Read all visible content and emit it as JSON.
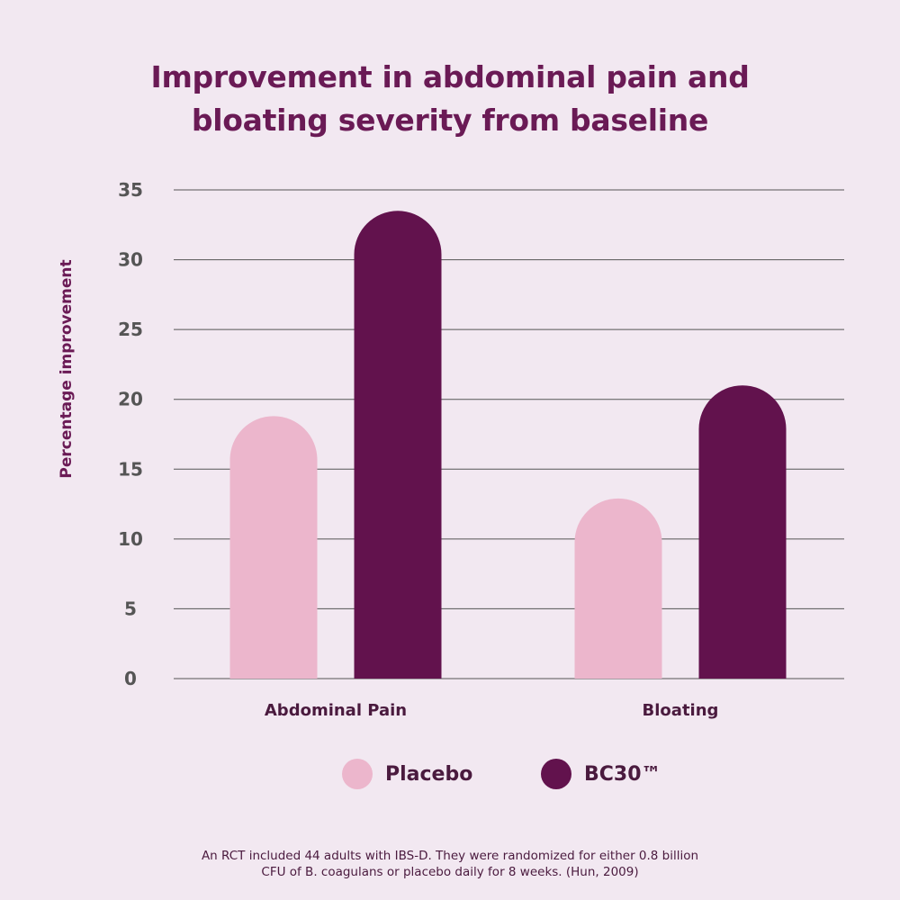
{
  "chart_data": {
    "type": "bar",
    "title_lines": [
      "Improvement in abdominal pain and",
      "bloating severity from baseline"
    ],
    "ylabel": "Percentage improvement",
    "xlabel": "",
    "ylim": [
      0,
      35
    ],
    "yticks": [
      "0",
      "5",
      "10",
      "15",
      "20",
      "25",
      "30",
      "35"
    ],
    "categories": [
      "Abdominal Pain",
      "Bloating"
    ],
    "series": [
      {
        "name": "Placebo",
        "values": [
          18.8,
          12.9
        ],
        "color": "#ecb6cc"
      },
      {
        "name": "BC30™",
        "values": [
          33.5,
          21.0
        ],
        "color": "#62124d"
      }
    ],
    "grid": true,
    "legend_position": "bottom"
  },
  "footnote": {
    "lines": [
      "An RCT included 44 adults with IBS-D. They were randomized for either 0.8 billion",
      "CFU of B. coagulans or placebo daily for 8 weeks. (Hun, 2009)"
    ]
  }
}
